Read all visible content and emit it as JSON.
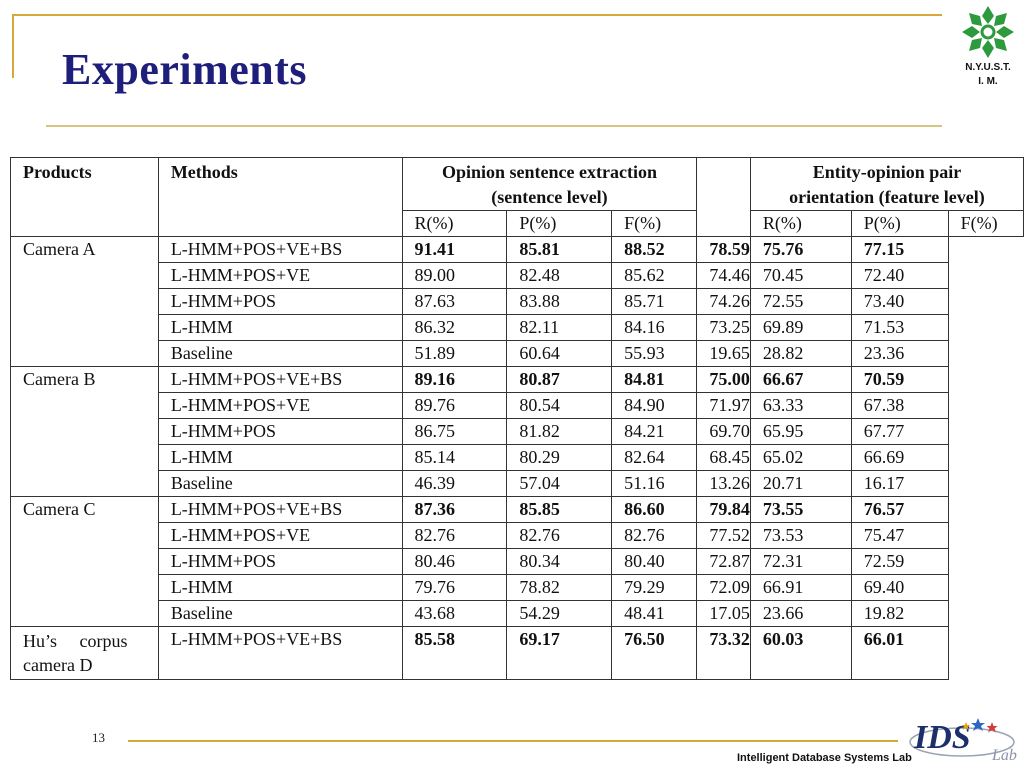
{
  "slide": {
    "title": "Experiments",
    "logo_line1": "N.Y.U.S.T.",
    "logo_line2": "I. M.",
    "page_number": "13",
    "footer_lab": "Intelligent Database Systems Lab",
    "ids_logo_letters": "IDS",
    "ids_logo_script": "Lab"
  },
  "table": {
    "header": {
      "products": "Products",
      "methods": "Methods",
      "group1_line1": "Opinion sentence extraction",
      "group1_line2": "(sentence level)",
      "group2_line1": "Entity-opinion pair",
      "group2_line2": "orientation  (feature level)",
      "sub": [
        "R(%)",
        "P(%)",
        "F(%)",
        "R(%)",
        "P(%)",
        "F(%)"
      ]
    },
    "groups": [
      {
        "product": "Camera A",
        "rows": [
          {
            "method": "L-HMM+POS+VE+BS",
            "values": [
              "91.41",
              "85.81",
              "88.52",
              "78.59",
              "75.76",
              "77.15"
            ],
            "bold": true
          },
          {
            "method": "L-HMM+POS+VE",
            "values": [
              "89.00",
              "82.48",
              "85.62",
              "74.46",
              "70.45",
              "72.40"
            ],
            "bold": false
          },
          {
            "method": "L-HMM+POS",
            "values": [
              "87.63",
              "83.88",
              "85.71",
              "74.26",
              "72.55",
              "73.40"
            ],
            "bold": false
          },
          {
            "method": "L-HMM",
            "values": [
              "86.32",
              "82.11",
              "84.16",
              "73.25",
              "69.89",
              "71.53"
            ],
            "bold": false
          },
          {
            "method": "Baseline",
            "values": [
              "51.89",
              "60.64",
              "55.93",
              "19.65",
              "28.82",
              "23.36"
            ],
            "bold": false
          }
        ]
      },
      {
        "product": "Camera B",
        "rows": [
          {
            "method": "L-HMM+POS+VE+BS",
            "values": [
              "89.16",
              "80.87",
              "84.81",
              "75.00",
              "66.67",
              "70.59"
            ],
            "bold": true
          },
          {
            "method": "L-HMM+POS+VE",
            "values": [
              "89.76",
              "80.54",
              "84.90",
              "71.97",
              "63.33",
              "67.38"
            ],
            "bold": false
          },
          {
            "method": "L-HMM+POS",
            "values": [
              "86.75",
              "81.82",
              "84.21",
              "69.70",
              "65.95",
              "67.77"
            ],
            "bold": false
          },
          {
            "method": "L-HMM",
            "values": [
              "85.14",
              "80.29",
              "82.64",
              "68.45",
              "65.02",
              "66.69"
            ],
            "bold": false
          },
          {
            "method": "Baseline",
            "values": [
              "46.39",
              "57.04",
              "51.16",
              "13.26",
              "20.71",
              "16.17"
            ],
            "bold": false
          }
        ]
      },
      {
        "product": "Camera C",
        "rows": [
          {
            "method": "L-HMM+POS+VE+BS",
            "values": [
              "87.36",
              "85.85",
              "86.60",
              "79.84",
              "73.55",
              "76.57"
            ],
            "bold": true
          },
          {
            "method": "L-HMM+POS+VE",
            "values": [
              "82.76",
              "82.76",
              "82.76",
              "77.52",
              "73.53",
              "75.47"
            ],
            "bold": false
          },
          {
            "method": "L-HMM+POS",
            "values": [
              "80.46",
              "80.34",
              "80.40",
              "72.87",
              "72.31",
              "72.59"
            ],
            "bold": false
          },
          {
            "method": "L-HMM",
            "values": [
              "79.76",
              "78.82",
              "79.29",
              "72.09",
              "66.91",
              "69.40"
            ],
            "bold": false
          },
          {
            "method": "Baseline",
            "values": [
              "43.68",
              "54.29",
              "48.41",
              "17.05",
              "23.66",
              "19.82"
            ],
            "bold": false
          }
        ]
      },
      {
        "product_line1": "Hu’s     corpus",
        "product_line2": "camera D",
        "rows": [
          {
            "method": "L-HMM+POS+VE+BS",
            "values": [
              "85.58",
              "69.17",
              "76.50",
              "73.32",
              "60.03",
              "66.01"
            ],
            "bold": true
          }
        ]
      }
    ]
  },
  "colors": {
    "title": "#1d1f7a",
    "accent_line": "#d4a93a",
    "logo_green": "#2e9a3e"
  }
}
